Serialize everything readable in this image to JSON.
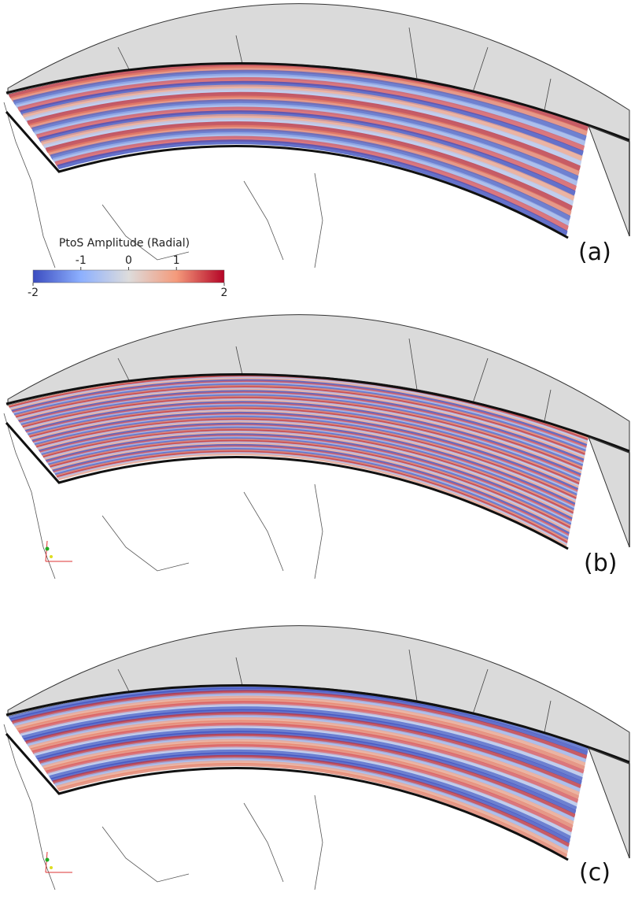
{
  "colorbar": {
    "title": "PtoS Amplitude (Radial)",
    "range": [
      -2,
      2
    ],
    "ticks": [
      -2,
      -1,
      0,
      1,
      2
    ]
  },
  "panels": [
    {
      "label": "(a)"
    },
    {
      "label": "(b)"
    },
    {
      "label": "(c)"
    }
  ]
}
